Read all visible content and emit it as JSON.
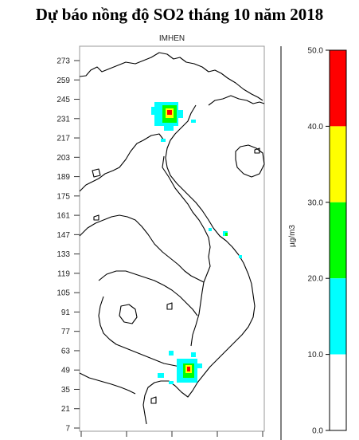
{
  "header": {
    "title": "Dự báo nồng độ SO2 tháng 10 năm 2018",
    "subtitle": "IMHEN"
  },
  "map": {
    "y_ticks": [
      "273",
      "259",
      "245",
      "231",
      "217",
      "203",
      "189",
      "175",
      "161",
      "147",
      "133",
      "119",
      "105",
      "91",
      "77",
      "63",
      "49",
      "35",
      "21",
      "7"
    ]
  },
  "legend": {
    "unit": "µg/m3",
    "labels": [
      "50.0",
      "40.0",
      "30.0",
      "20.0",
      "10.0",
      "0.0"
    ],
    "bins": [
      {
        "from": 40,
        "to": 50,
        "color": "#ff0000"
      },
      {
        "from": 30,
        "to": 40,
        "color": "#ffff00"
      },
      {
        "from": 20,
        "to": 30,
        "color": "#00ff00"
      },
      {
        "from": 10,
        "to": 20,
        "color": "#00ffff"
      },
      {
        "from": 0,
        "to": 10,
        "color": "#ffffff"
      }
    ]
  },
  "colors": {
    "low": "#00ffff",
    "medium": "#00ff00",
    "high": "#ffff00",
    "very_high": "#ff0000"
  }
}
